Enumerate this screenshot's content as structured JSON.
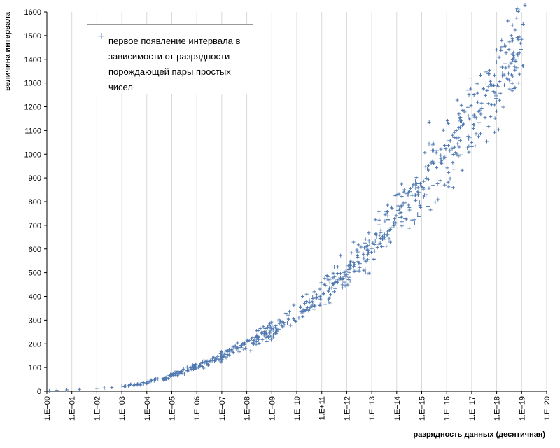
{
  "chart_data": {
    "type": "scatter",
    "xlabel": "разрядность  данных (десятичная)",
    "ylabel": "величина  интервала",
    "xlim": [
      0,
      20
    ],
    "ylim": [
      0,
      1600
    ],
    "x_scale": "log",
    "x_ticks": [
      "1.E+00",
      "1.E+01",
      "1.E+02",
      "1.E+03",
      "1.E+04",
      "1.E+05",
      "1.E+06",
      "1.E+07",
      "1.E+08",
      "1.E+09",
      "1.E+10",
      "1.E+11",
      "1.E+12",
      "1.E+13",
      "1.E+14",
      "1.E+15",
      "1.E+16",
      "1.E+17",
      "1.E+18",
      "1.E+19",
      "1.E+20"
    ],
    "y_ticks": [
      "0",
      "100",
      "200",
      "300",
      "400",
      "500",
      "600",
      "700",
      "800",
      "900",
      "1000",
      "1100",
      "1200",
      "1300",
      "1400",
      "1500",
      "1600"
    ],
    "grid": "vertical",
    "legend_position": "top-left",
    "series": [
      {
        "name": "первое появление интервала в зависимости от разрядности порождающей пары простых чисел",
        "marker": "+",
        "color": "#4f78b0",
        "x_exponent": [
          0.1,
          0.4,
          0.8,
          1.3,
          2.0,
          2.3,
          2.6,
          3.0,
          3.1,
          3.3,
          3.7,
          4.0,
          4.2,
          4.5,
          4.7,
          5.0,
          5.3,
          5.6,
          5.9,
          6.2,
          6.5,
          6.8,
          7.1,
          7.4,
          7.7,
          8.0,
          8.3,
          8.6,
          8.9,
          9.2,
          9.5,
          9.8,
          10.1,
          10.4,
          10.7,
          11.0,
          11.3,
          11.6,
          11.9,
          12.2,
          12.5,
          12.8,
          13.1,
          13.4,
          13.7,
          14.0,
          14.3,
          14.6,
          14.9,
          15.2,
          15.5,
          15.8,
          16.1,
          16.4,
          16.7,
          17.0,
          17.3,
          17.6,
          17.9,
          18.2,
          18.5,
          18.8,
          19.0,
          19.2
        ],
        "values": [
          2,
          4,
          6,
          8,
          12,
          14,
          16,
          22,
          20,
          26,
          30,
          36,
          44,
          55,
          52,
          68,
          78,
          90,
          100,
          112,
          124,
          138,
          152,
          168,
          182,
          196,
          214,
          232,
          250,
          270,
          290,
          314,
          336,
          360,
          384,
          410,
          438,
          468,
          500,
          530,
          564,
          598,
          630,
          664,
          700,
          738,
          776,
          812,
          850,
          890,
          930,
          970,
          1012,
          1056,
          1100,
          1146,
          1192,
          1238,
          1284,
          1330,
          1376,
          1420,
          1456,
          1490
        ],
        "spread": 0.07,
        "outliers": [
          {
            "x_exponent": 15.3,
            "y": 1135
          },
          {
            "x_exponent": 18.0,
            "y": 1440
          },
          {
            "x_exponent": 18.2,
            "y": 1480
          }
        ]
      }
    ]
  }
}
